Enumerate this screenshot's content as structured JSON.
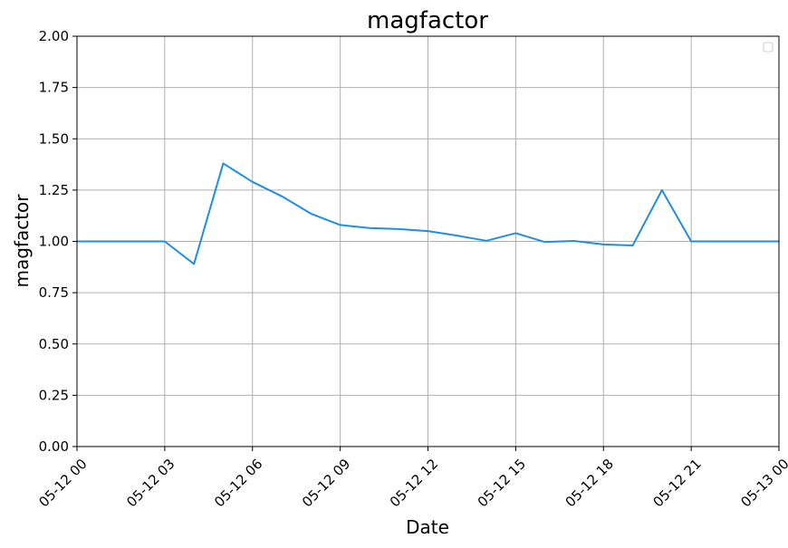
{
  "chart_data": {
    "type": "line",
    "title": "magfactor",
    "xlabel": "Date",
    "ylabel": "magfactor",
    "xlim": [
      "2024-05-12 00:00",
      "2024-05-13 00:00"
    ],
    "ylim": [
      0,
      2
    ],
    "x_ticks": [
      "05-12 00",
      "05-12 03",
      "05-12 06",
      "05-12 09",
      "05-12 12",
      "05-12 15",
      "05-12 18",
      "05-12 21",
      "05-13 00"
    ],
    "y_ticks": [
      "0.00",
      "0.25",
      "0.50",
      "0.75",
      "1.00",
      "1.25",
      "1.50",
      "1.75",
      "2.00"
    ],
    "grid": true,
    "legend": {
      "placement": "top-right",
      "entries": []
    },
    "series": [
      {
        "color": "#1f8ee6",
        "x": [
          "05-12 00:00",
          "05-12 01:00",
          "05-12 02:00",
          "05-12 03:00",
          "05-12 04:00",
          "05-12 05:00",
          "05-12 06:00",
          "05-12 07:00",
          "05-12 08:00",
          "05-12 09:00",
          "05-12 10:00",
          "05-12 11:00",
          "05-12 12:00",
          "05-12 13:00",
          "05-12 14:00",
          "05-12 15:00",
          "05-12 16:00",
          "05-12 17:00",
          "05-12 18:00",
          "05-12 19:00",
          "05-12 20:00",
          "05-12 21:00",
          "05-12 22:00",
          "05-12 23:00",
          "05-13 00:00"
        ],
        "y": [
          1.0,
          1.0,
          1.0,
          1.0,
          0.89,
          1.38,
          1.29,
          1.22,
          1.135,
          1.08,
          1.065,
          1.06,
          1.05,
          1.028,
          1.003,
          1.04,
          0.997,
          1.002,
          0.985,
          0.98,
          1.25,
          1.0,
          1.0,
          1.0,
          1.0
        ]
      }
    ]
  }
}
